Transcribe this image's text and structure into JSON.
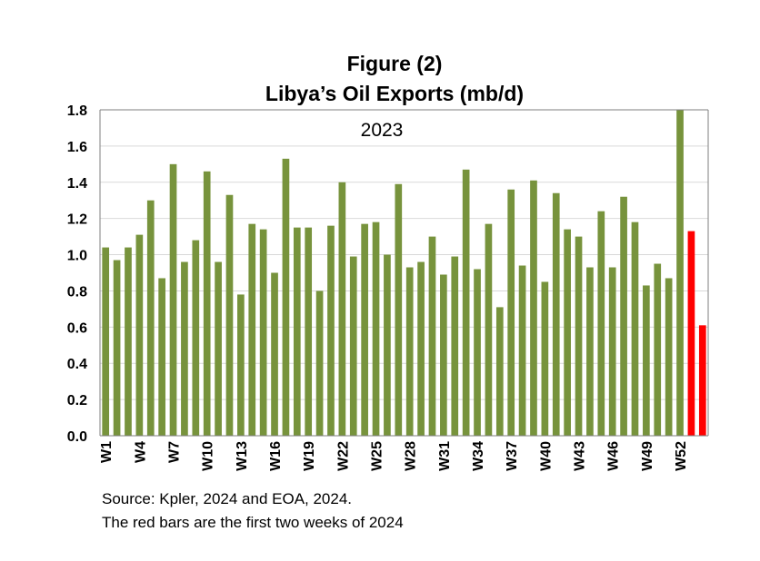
{
  "colors": {
    "bar_2023": "#77933C",
    "bar_2024": "#FF0000",
    "grid": "#D9D9D9",
    "axis": "#7F7F7F"
  },
  "chart_data": {
    "type": "bar",
    "title": "Figure (2)",
    "subtitle": "Libya’s Oil Exports (mb/d)",
    "annotation": "2023",
    "ylim": [
      0,
      1.8
    ],
    "yticks": [
      "0.0",
      "0.2",
      "0.4",
      "0.6",
      "0.8",
      "1.0",
      "1.2",
      "1.4",
      "1.6",
      "1.8"
    ],
    "grid": true,
    "xtick_labels": [
      "W1",
      "W4",
      "W7",
      "W10",
      "W13",
      "W16",
      "W19",
      "W22",
      "W25",
      "W28",
      "W31",
      "W34",
      "W37",
      "W40",
      "W43",
      "W46",
      "W49",
      "W52"
    ],
    "categories": [
      "W1",
      "W2",
      "W3",
      "W4",
      "W5",
      "W6",
      "W7",
      "W8",
      "W9",
      "W10",
      "W11",
      "W12",
      "W13",
      "W14",
      "W15",
      "W16",
      "W17",
      "W18",
      "W19",
      "W20",
      "W21",
      "W22",
      "W23",
      "W24",
      "W25",
      "W26",
      "W27",
      "W28",
      "W29",
      "W30",
      "W31",
      "W32",
      "W33",
      "W34",
      "W35",
      "W36",
      "W37",
      "W38",
      "W39",
      "W40",
      "W41",
      "W42",
      "W43",
      "W44",
      "W45",
      "W46",
      "W47",
      "W48",
      "W49",
      "W50",
      "W51",
      "W52",
      "W53",
      "W54"
    ],
    "series": [
      {
        "values": [
          1.04,
          0.97,
          1.04,
          1.11,
          1.3,
          0.87,
          1.5,
          0.96,
          1.08,
          1.46,
          0.96,
          1.33,
          0.78,
          1.17,
          1.14,
          0.9,
          1.53,
          1.15,
          1.15,
          0.8,
          1.16,
          1.4,
          0.99,
          1.17,
          1.18,
          1.0,
          1.39,
          0.93,
          0.96,
          1.1,
          0.89,
          0.99,
          1.47,
          0.92,
          1.17,
          0.71,
          1.36,
          0.94,
          1.41,
          0.85,
          1.34,
          1.14,
          1.1,
          0.93,
          1.24,
          0.93,
          1.32,
          1.18,
          0.83,
          0.95,
          0.87,
          1.8,
          1.13,
          0.61
        ],
        "colors_by_index": {
          "52": "bar_2024",
          "53": "bar_2024"
        }
      }
    ],
    "notes": [
      "Source: Kpler, 2024 and EOA, 2024.",
      "The red bars are the first two weeks of 2024"
    ]
  }
}
